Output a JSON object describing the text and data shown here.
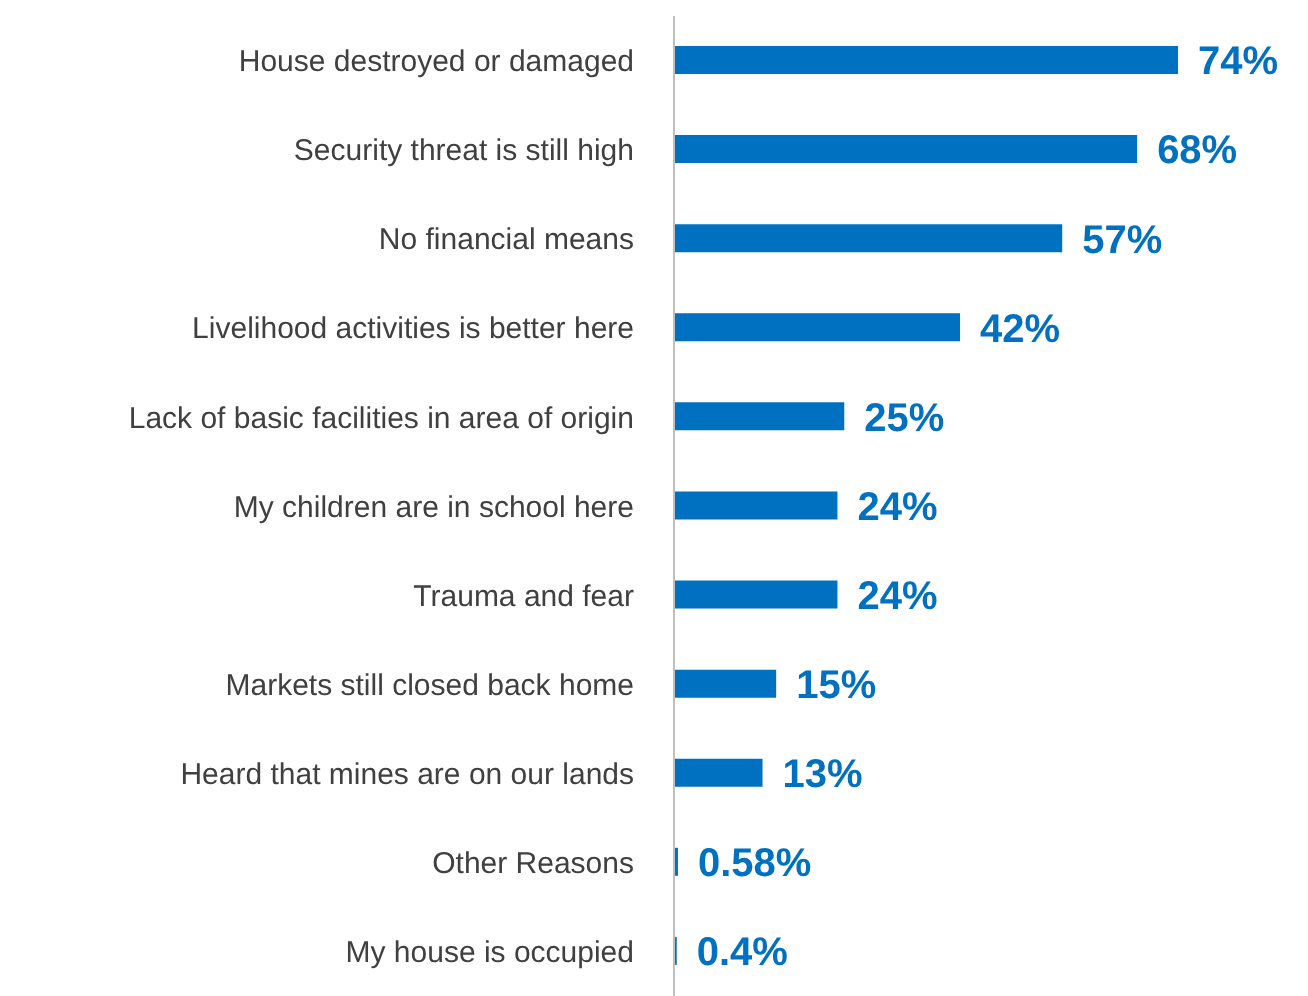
{
  "chart_data": {
    "type": "bar",
    "orientation": "horizontal",
    "categories": [
      "House destroyed or damaged",
      "Security threat is still high",
      "No financial means",
      "Livelihood activities is better here",
      "Lack of basic facilities in area of origin",
      "My children are in school here",
      "Trauma and fear",
      "Markets still closed back home",
      "Heard that mines are on our lands",
      "Other Reasons",
      "My house is occupied"
    ],
    "values": [
      74,
      68,
      57,
      42,
      25,
      24,
      24,
      15,
      13,
      0.58,
      0.4
    ],
    "value_labels": [
      "74%",
      "68%",
      "57%",
      "42%",
      "25%",
      "24%",
      "24%",
      "15%",
      "13%",
      "0.58%",
      "0.4%"
    ],
    "color": "#0070c0"
  }
}
